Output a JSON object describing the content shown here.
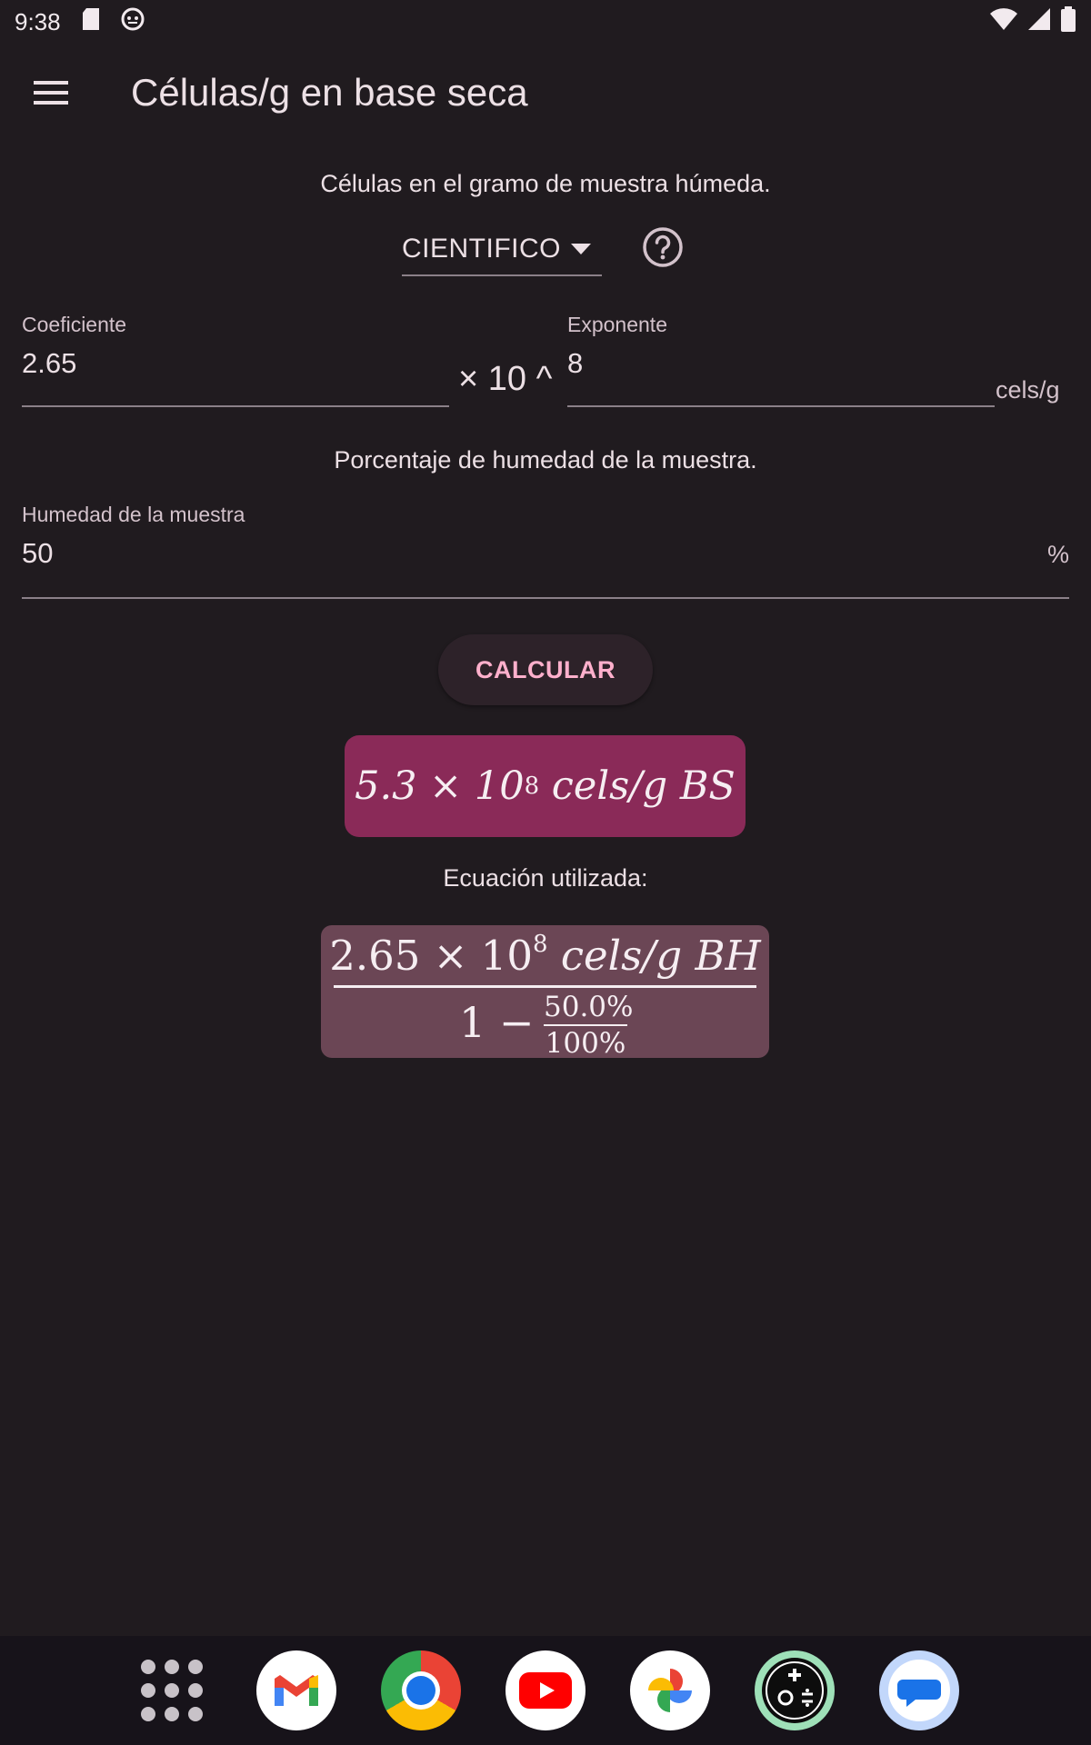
{
  "status_bar": {
    "time": "9:38",
    "icons_left": [
      "sd-card-icon",
      "debug-cat-icon"
    ],
    "icons_right": [
      "wifi-icon",
      "signal-icon",
      "battery-icon"
    ]
  },
  "app_bar": {
    "title": "Células/g en base seca",
    "menu_icon": "menu-icon"
  },
  "section1": {
    "text": "Células en el gramo de muestra húmeda.",
    "format_dropdown": {
      "selected": "CIENTIFICO"
    },
    "help_icon": "help-circle-icon",
    "coefficient": {
      "label": "Coeficiente",
      "value": "2.65"
    },
    "times_ten": "× 10 ^",
    "exponent": {
      "label": "Exponente",
      "value": "8"
    },
    "unit": "cels/g"
  },
  "section2": {
    "text": "Porcentaje de humedad de la muestra.",
    "humidity": {
      "label": "Humedad de la muestra",
      "value": "50"
    },
    "unit": "%"
  },
  "calculate_button": "CALCULAR",
  "result": {
    "mantissa": "5.3 × 10",
    "exponent": "8",
    "unit": " cels/g BS"
  },
  "equation": {
    "caption": "Ecuación utilizada:",
    "numerator_mantissa": "2.65 × 10",
    "numerator_exponent": "8",
    "numerator_unit": " cels/g BH",
    "denominator_one": "1 −",
    "fraction_top": "50.0%",
    "fraction_bottom": "100%"
  },
  "dock": {
    "apps": [
      "app-drawer-icon",
      "gmail-icon",
      "chrome-icon",
      "youtube-icon",
      "photos-icon",
      "calculator-app-icon",
      "messages-icon"
    ]
  },
  "colors": {
    "background": "#201b1f",
    "accent_text": "#ffb0cc",
    "result_bg": "#8a2a58",
    "equation_bg": "#6b4655"
  }
}
